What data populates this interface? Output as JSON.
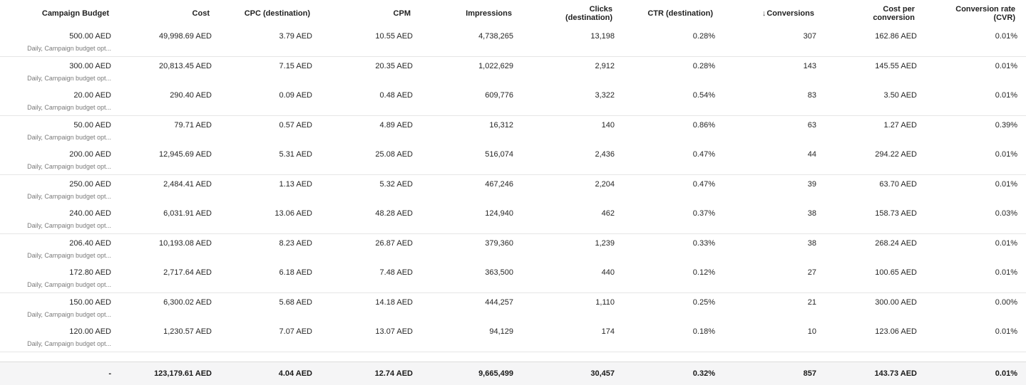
{
  "table": {
    "columns": [
      {
        "key": "budget",
        "label": "Campaign Budget"
      },
      {
        "key": "cost",
        "label": "Cost"
      },
      {
        "key": "cpc",
        "label": "CPC (destination)"
      },
      {
        "key": "cpm",
        "label": "CPM"
      },
      {
        "key": "impressions",
        "label": "Impressions"
      },
      {
        "key": "clicks",
        "label": "Clicks\n(destination)"
      },
      {
        "key": "ctr",
        "label": "CTR (destination)"
      },
      {
        "key": "conversions",
        "label": "Conversions",
        "sort_icon": "arrow-down-icon",
        "sort_glyph": "↓"
      },
      {
        "key": "cpconv",
        "label": "Cost per\nconversion"
      },
      {
        "key": "cvr",
        "label": "Conversion rate\n(CVR)"
      }
    ],
    "rows": [
      {
        "budget": "500.00 AED",
        "budget_sub": "Daily, Campaign budget opt...",
        "cost": "49,998.69 AED",
        "cpc": "3.79 AED",
        "cpm": "10.55 AED",
        "impressions": "4,738,265",
        "clicks": "13,198",
        "ctr": "0.28%",
        "conversions": "307",
        "cpconv": "162.86 AED",
        "cvr": "0.01%"
      },
      {
        "budget": "300.00 AED",
        "budget_sub": "Daily, Campaign budget opt...",
        "cost": "20,813.45 AED",
        "cpc": "7.15 AED",
        "cpm": "20.35 AED",
        "impressions": "1,022,629",
        "clicks": "2,912",
        "ctr": "0.28%",
        "conversions": "143",
        "cpconv": "145.55 AED",
        "cvr": "0.01%"
      },
      {
        "budget": "20.00 AED",
        "budget_sub": "Daily, Campaign budget opt...",
        "cost": "290.40 AED",
        "cpc": "0.09 AED",
        "cpm": "0.48 AED",
        "impressions": "609,776",
        "clicks": "3,322",
        "ctr": "0.54%",
        "conversions": "83",
        "cpconv": "3.50 AED",
        "cvr": "0.01%"
      },
      {
        "budget": "50.00 AED",
        "budget_sub": "Daily, Campaign budget opt...",
        "cost": "79.71 AED",
        "cpc": "0.57 AED",
        "cpm": "4.89 AED",
        "impressions": "16,312",
        "clicks": "140",
        "ctr": "0.86%",
        "conversions": "63",
        "cpconv": "1.27 AED",
        "cvr": "0.39%"
      },
      {
        "budget": "200.00 AED",
        "budget_sub": "Daily, Campaign budget opt...",
        "cost": "12,945.69 AED",
        "cpc": "5.31 AED",
        "cpm": "25.08 AED",
        "impressions": "516,074",
        "clicks": "2,436",
        "ctr": "0.47%",
        "conversions": "44",
        "cpconv": "294.22 AED",
        "cvr": "0.01%"
      },
      {
        "budget": "250.00 AED",
        "budget_sub": "Daily, Campaign budget opt...",
        "cost": "2,484.41 AED",
        "cpc": "1.13 AED",
        "cpm": "5.32 AED",
        "impressions": "467,246",
        "clicks": "2,204",
        "ctr": "0.47%",
        "conversions": "39",
        "cpconv": "63.70 AED",
        "cvr": "0.01%"
      },
      {
        "budget": "240.00 AED",
        "budget_sub": "Daily, Campaign budget opt...",
        "cost": "6,031.91 AED",
        "cpc": "13.06 AED",
        "cpm": "48.28 AED",
        "impressions": "124,940",
        "clicks": "462",
        "ctr": "0.37%",
        "conversions": "38",
        "cpconv": "158.73 AED",
        "cvr": "0.03%"
      },
      {
        "budget": "206.40 AED",
        "budget_sub": "Daily, Campaign budget opt...",
        "cost": "10,193.08 AED",
        "cpc": "8.23 AED",
        "cpm": "26.87 AED",
        "impressions": "379,360",
        "clicks": "1,239",
        "ctr": "0.33%",
        "conversions": "38",
        "cpconv": "268.24 AED",
        "cvr": "0.01%"
      },
      {
        "budget": "172.80 AED",
        "budget_sub": "Daily, Campaign budget opt...",
        "cost": "2,717.64 AED",
        "cpc": "6.18 AED",
        "cpm": "7.48 AED",
        "impressions": "363,500",
        "clicks": "440",
        "ctr": "0.12%",
        "conversions": "27",
        "cpconv": "100.65 AED",
        "cvr": "0.01%"
      },
      {
        "budget": "150.00 AED",
        "budget_sub": "Daily, Campaign budget opt...",
        "cost": "6,300.02 AED",
        "cpc": "5.68 AED",
        "cpm": "14.18 AED",
        "impressions": "444,257",
        "clicks": "1,110",
        "ctr": "0.25%",
        "conversions": "21",
        "cpconv": "300.00 AED",
        "cvr": "0.00%"
      },
      {
        "budget": "120.00 AED",
        "budget_sub": "Daily, Campaign budget opt...",
        "cost": "1,230.57 AED",
        "cpc": "7.07 AED",
        "cpm": "13.07 AED",
        "impressions": "94,129",
        "clicks": "174",
        "ctr": "0.18%",
        "conversions": "10",
        "cpconv": "123.06 AED",
        "cvr": "0.01%"
      }
    ],
    "totals": {
      "budget": "-",
      "cost": "123,179.61 AED",
      "cpc": "4.04 AED",
      "cpm": "12.74 AED",
      "impressions": "9,665,499",
      "clicks": "30,457",
      "ctr": "0.32%",
      "conversions": "857",
      "cpconv": "143.73 AED",
      "cvr": "0.01%"
    }
  }
}
